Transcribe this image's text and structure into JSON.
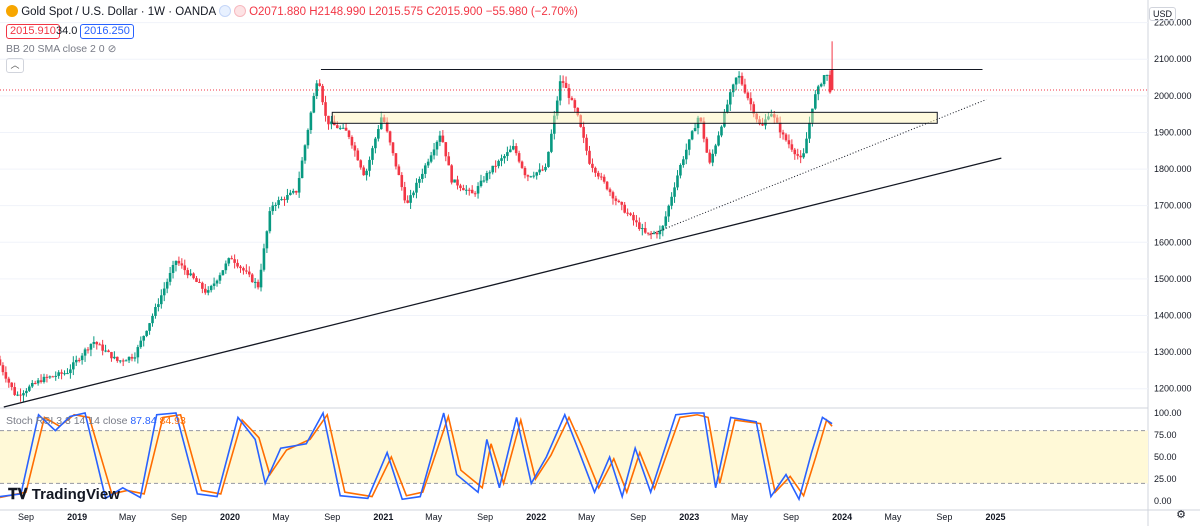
{
  "header": {
    "symbol": "Gold Spot / U.S. Dollar · 1W · OANDA",
    "open": "O2071.880",
    "high": "H2148.990",
    "low": "L2015.575",
    "close": "C2015.900",
    "change": "−55.980 (−2.70%)",
    "bid": "2015.910",
    "spread": "34.0",
    "ask": "2016.250",
    "indicator_label": "BB 20 SMA close 2 0",
    "currency": "USD",
    "brand": "TradingView"
  },
  "stoch_label": {
    "title": "Stoch RSI 3 3 14 14 close",
    "k_value": "87.84",
    "d_value": "84.93"
  },
  "colors": {
    "up": "#089981",
    "down": "#f23645",
    "k_line": "#2962ff",
    "d_line": "#ff6d00",
    "band": "#fff9d7"
  },
  "chart_data": {
    "type": "candlestick",
    "title": "Gold Spot / U.S. Dollar · 1W · OANDA",
    "price_ticks": [
      "2200.000",
      "2100.000",
      "2000.000",
      "1900.000",
      "1800.000",
      "1700.000",
      "1600.000",
      "1500.000",
      "1400.000",
      "1300.000",
      "1200.000"
    ],
    "price_range": [
      1150,
      2240
    ],
    "time_ticks": [
      "Sep",
      "2019",
      "May",
      "Sep",
      "2020",
      "May",
      "Sep",
      "2021",
      "May",
      "Sep",
      "2022",
      "May",
      "Sep",
      "2023",
      "May",
      "Sep",
      "2024",
      "May",
      "Sep",
      "2025"
    ],
    "time_range": [
      "2018-07-01",
      "2025-12-31"
    ],
    "price_path": [
      [
        "2018-07-01",
        1280
      ],
      [
        "2018-08-15",
        1180
      ],
      [
        "2018-10-15",
        1225
      ],
      [
        "2018-12-15",
        1245
      ],
      [
        "2019-02-15",
        1330
      ],
      [
        "2019-04-15",
        1275
      ],
      [
        "2019-05-25",
        1290
      ],
      [
        "2019-07-15",
        1420
      ],
      [
        "2019-09-01",
        1550
      ],
      [
        "2019-11-15",
        1460
      ],
      [
        "2020-01-10",
        1560
      ],
      [
        "2020-03-15",
        1480
      ],
      [
        "2020-04-15",
        1700
      ],
      [
        "2020-06-15",
        1740
      ],
      [
        "2020-08-05",
        2060
      ],
      [
        "2020-08-25",
        1930
      ],
      [
        "2020-10-15",
        1900
      ],
      [
        "2020-11-25",
        1780
      ],
      [
        "2021-01-05",
        1950
      ],
      [
        "2021-03-05",
        1700
      ],
      [
        "2021-05-25",
        1900
      ],
      [
        "2021-06-20",
        1770
      ],
      [
        "2021-08-10",
        1730
      ],
      [
        "2021-09-15",
        1790
      ],
      [
        "2021-11-15",
        1860
      ],
      [
        "2021-12-15",
        1780
      ],
      [
        "2022-01-30",
        1800
      ],
      [
        "2022-03-08",
        2050
      ],
      [
        "2022-04-15",
        1950
      ],
      [
        "2022-05-15",
        1820
      ],
      [
        "2022-07-20",
        1710
      ],
      [
        "2022-09-28",
        1620
      ],
      [
        "2022-11-03",
        1630
      ],
      [
        "2022-12-15",
        1800
      ],
      [
        "2023-02-01",
        1950
      ],
      [
        "2023-02-25",
        1810
      ],
      [
        "2023-04-15",
        2000
      ],
      [
        "2023-05-04",
        2060
      ],
      [
        "2023-06-29",
        1910
      ],
      [
        "2023-07-20",
        1960
      ],
      [
        "2023-08-20",
        1890
      ],
      [
        "2023-10-05",
        1820
      ],
      [
        "2023-11-01",
        1990
      ],
      [
        "2023-12-01",
        2070
      ],
      [
        "2023-12-08",
        2016
      ]
    ],
    "last_candle": {
      "date": "2023-12-08",
      "open": 2071.88,
      "high": 2148.99,
      "low": 2015.575,
      "close": 2015.9
    },
    "resistance_line": {
      "from": [
        "2020-08-05",
        2072
      ],
      "to": [
        "2024-12-01",
        2072
      ]
    },
    "zone_box": {
      "from": [
        "2020-09-01",
        1955
      ],
      "to": [
        "2024-08-15",
        1925
      ]
    },
    "support_trendline": {
      "from": [
        "2018-07-10",
        1150
      ],
      "to": [
        "2025-01-15",
        1830
      ]
    },
    "dotted_trendline": {
      "from": [
        "2022-09-28",
        1620
      ],
      "to": [
        "2024-12-10",
        1990
      ]
    },
    "stoch": {
      "ticks": [
        "100.00",
        "75.00",
        "50.00",
        "25.00",
        "0.00"
      ],
      "band": [
        20,
        80
      ],
      "k_path": [
        [
          "2018-07-01",
          5
        ],
        [
          "2018-08-20",
          8
        ],
        [
          "2018-10-01",
          98
        ],
        [
          "2018-11-10",
          80
        ],
        [
          "2018-12-15",
          96
        ],
        [
          "2019-01-20",
          100
        ],
        [
          "2019-03-10",
          3
        ],
        [
          "2019-04-20",
          15
        ],
        [
          "2019-06-01",
          4
        ],
        [
          "2019-07-10",
          98
        ],
        [
          "2019-08-25",
          100
        ],
        [
          "2019-10-15",
          8
        ],
        [
          "2019-12-01",
          5
        ],
        [
          "2020-01-20",
          95
        ],
        [
          "2020-03-01",
          70
        ],
        [
          "2020-03-25",
          20
        ],
        [
          "2020-05-01",
          60
        ],
        [
          "2020-07-01",
          65
        ],
        [
          "2020-08-10",
          100
        ],
        [
          "2020-09-20",
          6
        ],
        [
          "2020-11-25",
          3
        ],
        [
          "2021-01-10",
          55
        ],
        [
          "2021-02-15",
          2
        ],
        [
          "2021-03-30",
          5
        ],
        [
          "2021-05-25",
          100
        ],
        [
          "2021-06-25",
          30
        ],
        [
          "2021-08-15",
          10
        ],
        [
          "2021-09-05",
          70
        ],
        [
          "2021-10-05",
          15
        ],
        [
          "2021-11-15",
          95
        ],
        [
          "2021-12-20",
          20
        ],
        [
          "2022-01-25",
          50
        ],
        [
          "2022-03-10",
          98
        ],
        [
          "2022-04-10",
          60
        ],
        [
          "2022-05-20",
          10
        ],
        [
          "2022-06-25",
          50
        ],
        [
          "2022-07-25",
          5
        ],
        [
          "2022-08-25",
          60
        ],
        [
          "2022-10-01",
          10
        ],
        [
          "2022-11-30",
          98
        ],
        [
          "2023-01-10",
          100
        ],
        [
          "2023-02-05",
          100
        ],
        [
          "2023-03-05",
          15
        ],
        [
          "2023-04-10",
          95
        ],
        [
          "2023-06-10",
          90
        ],
        [
          "2023-07-15",
          5
        ],
        [
          "2023-08-20",
          30
        ],
        [
          "2023-09-20",
          2
        ],
        [
          "2023-10-20",
          55
        ],
        [
          "2023-11-15",
          95
        ],
        [
          "2023-12-08",
          87.84
        ]
      ],
      "d_path": [
        [
          "2018-07-01",
          4
        ],
        [
          "2018-09-01",
          10
        ],
        [
          "2018-10-15",
          95
        ],
        [
          "2018-11-20",
          85
        ],
        [
          "2018-12-25",
          98
        ],
        [
          "2019-01-30",
          95
        ],
        [
          "2019-03-25",
          8
        ],
        [
          "2019-05-01",
          12
        ],
        [
          "2019-06-10",
          8
        ],
        [
          "2019-07-25",
          95
        ],
        [
          "2019-09-05",
          98
        ],
        [
          "2019-10-25",
          12
        ],
        [
          "2019-12-10",
          8
        ],
        [
          "2020-01-30",
          92
        ],
        [
          "2020-03-10",
          72
        ],
        [
          "2020-04-05",
          30
        ],
        [
          "2020-05-15",
          58
        ],
        [
          "2020-07-10",
          70
        ],
        [
          "2020-08-20",
          98
        ],
        [
          "2020-10-01",
          10
        ],
        [
          "2020-12-05",
          5
        ],
        [
          "2021-01-20",
          50
        ],
        [
          "2021-02-25",
          6
        ],
        [
          "2021-04-05",
          10
        ],
        [
          "2021-06-05",
          96
        ],
        [
          "2021-07-05",
          35
        ],
        [
          "2021-08-25",
          15
        ],
        [
          "2021-09-15",
          65
        ],
        [
          "2021-10-15",
          20
        ],
        [
          "2021-11-25",
          92
        ],
        [
          "2021-12-30",
          25
        ],
        [
          "2022-02-05",
          52
        ],
        [
          "2022-03-20",
          95
        ],
        [
          "2022-04-20",
          62
        ],
        [
          "2022-05-30",
          15
        ],
        [
          "2022-07-05",
          48
        ],
        [
          "2022-08-05",
          10
        ],
        [
          "2022-09-05",
          55
        ],
        [
          "2022-10-10",
          14
        ],
        [
          "2022-12-10",
          95
        ],
        [
          "2023-01-20",
          98
        ],
        [
          "2023-02-15",
          95
        ],
        [
          "2023-03-15",
          20
        ],
        [
          "2023-04-20",
          92
        ],
        [
          "2023-06-20",
          88
        ],
        [
          "2023-07-25",
          10
        ],
        [
          "2023-08-30",
          28
        ],
        [
          "2023-10-01",
          6
        ],
        [
          "2023-10-30",
          50
        ],
        [
          "2023-11-25",
          92
        ],
        [
          "2023-12-08",
          84.93
        ]
      ]
    }
  }
}
